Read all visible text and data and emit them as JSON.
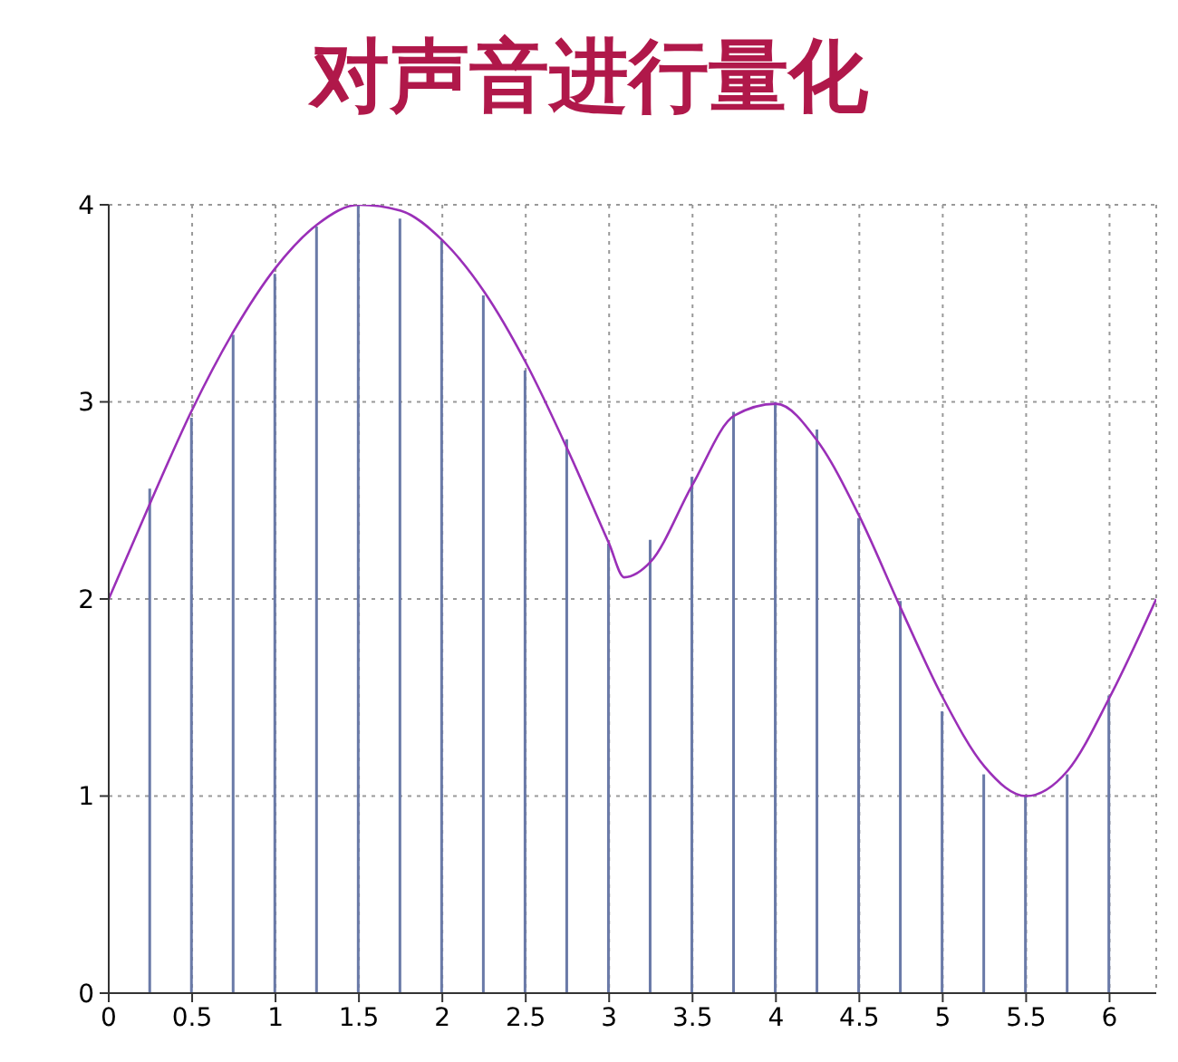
{
  "chart_data": {
    "type": "line",
    "title": "对声音进行量化",
    "series": [
      {
        "color": "#9a2fb8",
        "x": [
          0,
          0.25,
          0.5,
          0.75,
          1,
          1.25,
          1.5,
          1.75,
          2,
          2.25,
          2.5,
          2.75,
          3,
          3.09,
          3.25,
          3.5,
          3.75,
          4,
          4.25,
          4.5,
          4.75,
          5,
          5.25,
          5.5,
          5.75,
          6,
          6.28
        ],
        "values": [
          2,
          2.49,
          2.96,
          3.36,
          3.68,
          3.9,
          4,
          3.97,
          3.82,
          3.56,
          3.2,
          2.76,
          2.28,
          2.11,
          2.19,
          2.58,
          2.93,
          2.99,
          2.8,
          2.42,
          1.95,
          1.5,
          1.15,
          1,
          1.13,
          1.5,
          2
        ]
      },
      {
        "type": "bar",
        "color": "#6a7aa8",
        "x": [
          0.25,
          0.5,
          0.75,
          1,
          1.25,
          1.5,
          1.75,
          2,
          2.25,
          2.5,
          2.75,
          3,
          3.25,
          3.5,
          3.75,
          4,
          4.25,
          4.5,
          4.75,
          5,
          5.25,
          5.5,
          5.75,
          6
        ],
        "values": [
          2.56,
          2.92,
          3.34,
          3.65,
          3.89,
          4,
          3.93,
          3.82,
          3.54,
          3.16,
          2.81,
          2.28,
          2.3,
          2.62,
          2.95,
          3,
          2.86,
          2.41,
          1.99,
          1.43,
          1.11,
          1,
          1.11,
          1.51
        ]
      }
    ],
    "xlim": [
      0,
      6.28
    ],
    "xticks": [
      0,
      0.5,
      1,
      1.5,
      2,
      2.5,
      3,
      3.5,
      4,
      4.5,
      5,
      5.5,
      6
    ],
    "ylim": [
      0,
      4
    ],
    "yticks": [
      0,
      1,
      2,
      3,
      4
    ],
    "grid": true,
    "marker": "none",
    "line_style": "solid"
  }
}
